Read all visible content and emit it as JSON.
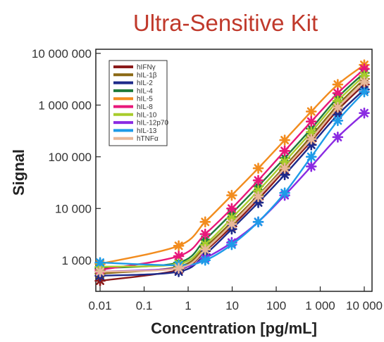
{
  "chart_data": {
    "type": "line",
    "title": "Ultra-Sensitive Kit",
    "xlabel": "Concentration  [pg/mL]",
    "ylabel": "Signal",
    "x_scale": "log",
    "y_scale": "log",
    "xlim": [
      0.008,
      15000
    ],
    "ylim": [
      250,
      12000000
    ],
    "x_ticks": [
      0.01,
      0.1,
      1,
      10,
      100,
      1000,
      10000
    ],
    "x_tick_labels": [
      "0.01",
      "0.1",
      "1",
      "10",
      "100",
      "1 000",
      "10 000"
    ],
    "y_ticks": [
      1000,
      10000,
      100000,
      1000000,
      10000000
    ],
    "y_tick_labels": [
      "1 000",
      "10 000",
      "100 000",
      "1 000 000",
      "10 000 000"
    ],
    "x": [
      0.01,
      0.61,
      2.44,
      9.77,
      39.1,
      156,
      625,
      2500,
      10000
    ],
    "grid": false,
    "legend_position": "top-left",
    "series": [
      {
        "name": "hIFNγ",
        "color": "#8b1a1a",
        "values": [
          400,
          650,
          1500,
          4500,
          15000,
          55000,
          200000,
          800000,
          2500000
        ]
      },
      {
        "name": "hIL-1β",
        "color": "#8b6914",
        "values": [
          550,
          750,
          1800,
          5500,
          18000,
          65000,
          250000,
          1000000,
          3200000
        ]
      },
      {
        "name": "hIL-2",
        "color": "#1e2a8a",
        "values": [
          500,
          600,
          1300,
          4000,
          13000,
          45000,
          170000,
          650000,
          2000000
        ]
      },
      {
        "name": "hIL-4",
        "color": "#1e7a3a",
        "values": [
          700,
          900,
          2500,
          8000,
          27000,
          95000,
          350000,
          1400000,
          4200000
        ]
      },
      {
        "name": "hIL-5",
        "color": "#f28c1e",
        "values": [
          850,
          1900,
          5500,
          18000,
          60000,
          210000,
          750000,
          2500000,
          6000000
        ]
      },
      {
        "name": "hIL-8",
        "color": "#e8177a",
        "values": [
          650,
          1200,
          3200,
          10000,
          35000,
          130000,
          480000,
          1700000,
          5000000
        ]
      },
      {
        "name": "hIL-10",
        "color": "#a8cc2c",
        "values": [
          750,
          850,
          2000,
          6500,
          22000,
          80000,
          300000,
          1200000,
          3700000
        ]
      },
      {
        "name": "hIL-12p70",
        "color": "#8a2be2",
        "values": [
          600,
          700,
          1100,
          2200,
          5500,
          18000,
          65000,
          240000,
          700000
        ]
      },
      {
        "name": "hIL-13",
        "color": "#1e9be8",
        "values": [
          900,
          800,
          1000,
          2000,
          5500,
          20000,
          100000,
          500000,
          1800000
        ]
      },
      {
        "name": "hTNFα",
        "color": "#e8b89a",
        "values": [
          600,
          700,
          1600,
          5000,
          17000,
          60000,
          220000,
          900000,
          2800000
        ]
      }
    ]
  }
}
